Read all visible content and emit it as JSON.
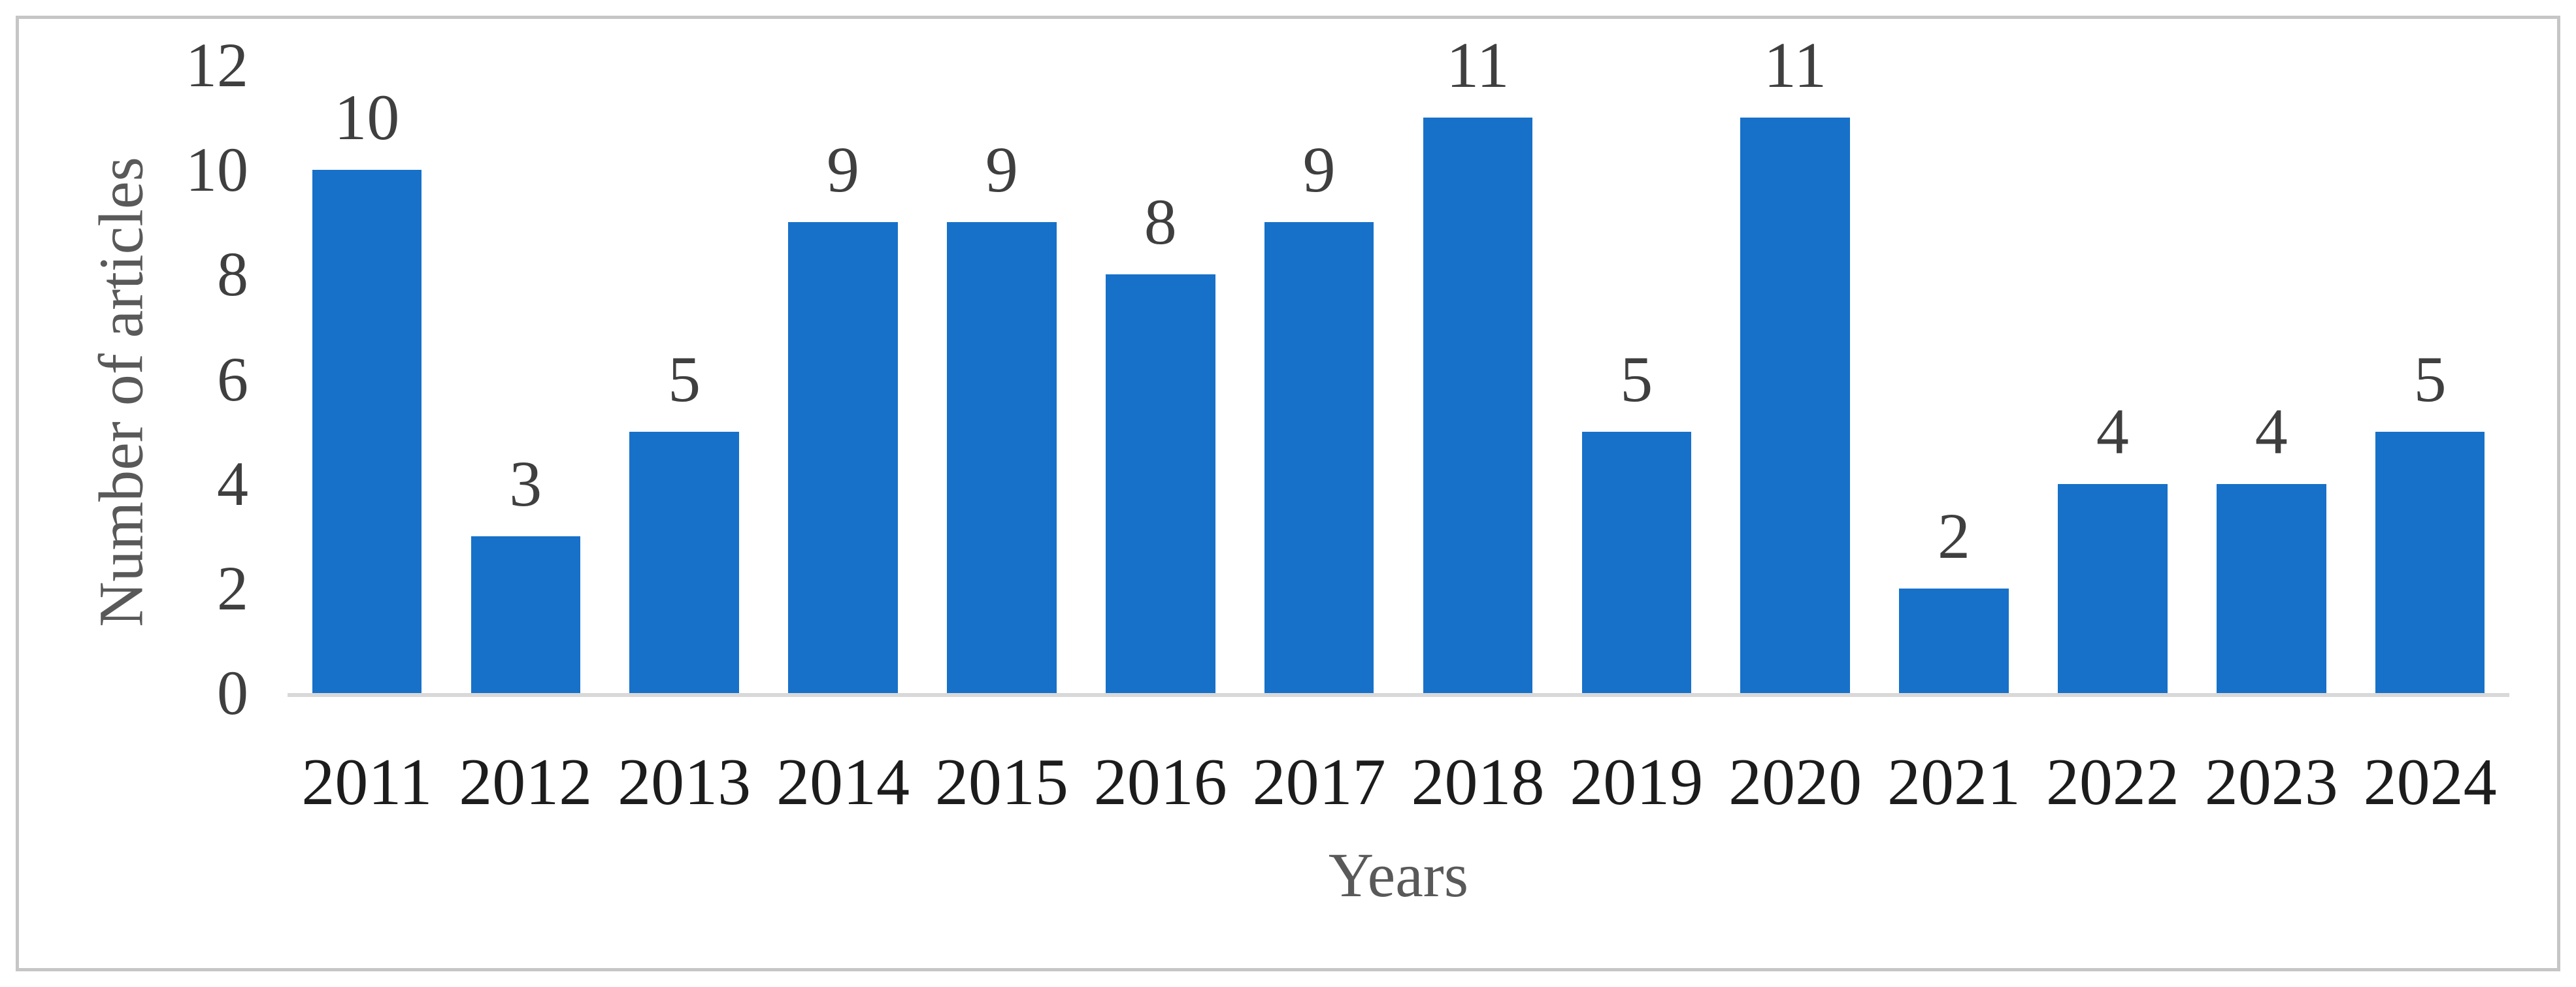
{
  "chart_data": {
    "type": "bar",
    "title": "",
    "categories": [
      "2011",
      "2012",
      "2013",
      "2014",
      "2015",
      "2016",
      "2017",
      "2018",
      "2019",
      "2020",
      "2021",
      "2022",
      "2023",
      "2024"
    ],
    "values": [
      10,
      3,
      5,
      9,
      9,
      8,
      9,
      11,
      5,
      11,
      2,
      4,
      4,
      5
    ],
    "xlabel": "Years",
    "ylabel": "Number of articles",
    "ylim": [
      0,
      12
    ],
    "yticks": [
      0,
      2,
      4,
      6,
      8,
      10,
      12
    ],
    "grid": "off",
    "legend": "none",
    "data_labels_shown": true,
    "colors": {
      "bar": "#1771C9",
      "axis_line": "#D9D9D9",
      "tick_label": "#3F3F3F",
      "category_label": "#1C1C1C",
      "axis_title": "#595959",
      "frame_border": "#C6C6C6",
      "background": "#FFFFFF"
    }
  }
}
